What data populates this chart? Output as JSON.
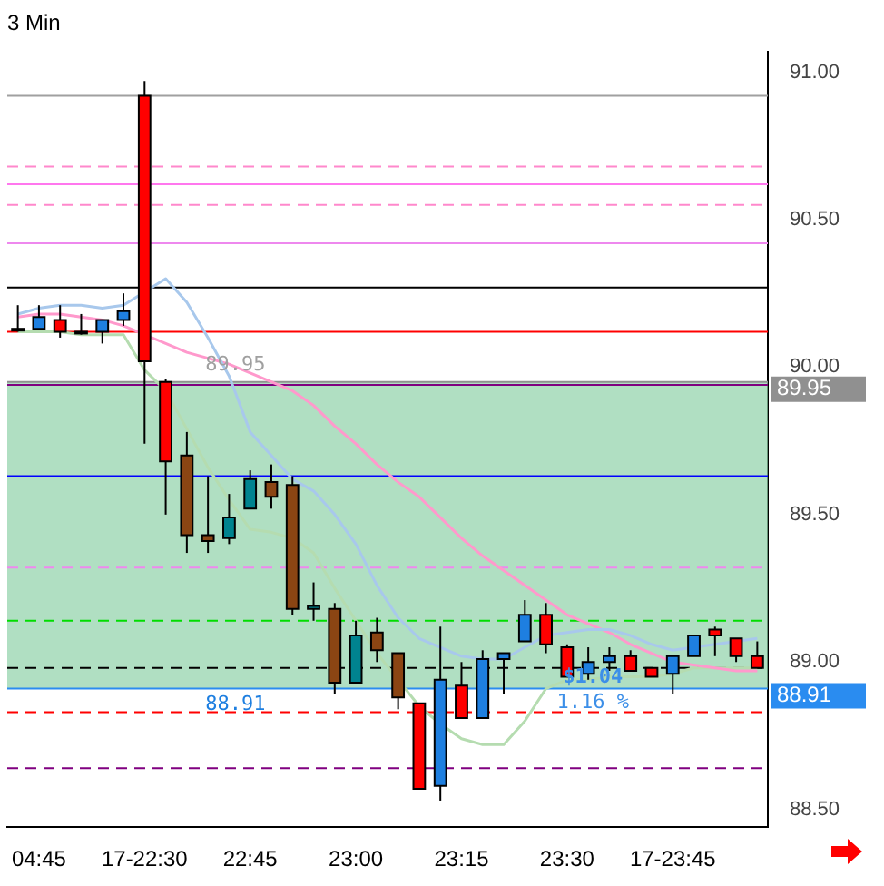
{
  "chart_data": {
    "type": "candlestick",
    "title": "3 Min",
    "categories": [
      null,
      "04:45",
      null,
      null,
      null,
      null,
      "17-22:30",
      null,
      null,
      null,
      null,
      "22:45",
      null,
      null,
      null,
      null,
      "23:00",
      null,
      null,
      null,
      null,
      "23:15",
      null,
      null,
      null,
      null,
      "23:30",
      null,
      null,
      null,
      null,
      "17-23:45",
      null,
      null,
      null,
      null
    ],
    "ohlc": [
      [
        90.13,
        90.21,
        90.12,
        90.13
      ],
      [
        90.13,
        90.21,
        90.13,
        90.17
      ],
      [
        90.16,
        90.21,
        90.1,
        90.12
      ],
      [
        90.12,
        90.18,
        90.11,
        90.12
      ],
      [
        90.12,
        90.16,
        90.08,
        90.16
      ],
      [
        90.16,
        90.25,
        90.14,
        90.19
      ],
      [
        90.92,
        90.97,
        89.74,
        90.02
      ],
      [
        89.95,
        89.96,
        89.5,
        89.68
      ],
      [
        89.7,
        89.78,
        89.37,
        89.43
      ],
      [
        89.43,
        89.63,
        89.37,
        89.41
      ],
      [
        89.42,
        89.57,
        89.4,
        89.49
      ],
      [
        89.52,
        89.65,
        89.52,
        89.62
      ],
      [
        89.61,
        89.67,
        89.52,
        89.56
      ],
      [
        89.6,
        89.63,
        89.16,
        89.18
      ],
      [
        89.18,
        89.27,
        89.14,
        89.19
      ],
      [
        89.18,
        89.2,
        88.89,
        88.93
      ],
      [
        88.93,
        89.14,
        88.93,
        89.09
      ],
      [
        89.1,
        89.15,
        89.0,
        89.04
      ],
      [
        89.03,
        89.03,
        88.84,
        88.88
      ],
      [
        88.86,
        88.86,
        88.57,
        88.57
      ],
      [
        88.58,
        89.12,
        88.53,
        88.94
      ],
      [
        88.92,
        89.0,
        88.81,
        88.81
      ],
      [
        88.81,
        89.04,
        88.81,
        89.01
      ],
      [
        89.01,
        89.03,
        88.89,
        89.03
      ],
      [
        89.07,
        89.21,
        89.07,
        89.16
      ],
      [
        89.16,
        89.2,
        89.03,
        89.06
      ],
      [
        89.05,
        89.06,
        88.95,
        88.95
      ],
      [
        88.96,
        89.05,
        88.94,
        89.0
      ],
      [
        89.0,
        89.05,
        88.97,
        89.02
      ],
      [
        89.02,
        89.04,
        88.97,
        88.97
      ],
      [
        88.98,
        88.98,
        88.95,
        88.95
      ],
      [
        88.96,
        89.02,
        88.89,
        89.02
      ],
      [
        89.02,
        89.09,
        89.02,
        89.09
      ],
      [
        89.11,
        89.12,
        89.02,
        89.09
      ],
      [
        89.08,
        89.08,
        89.0,
        89.02
      ],
      [
        89.02,
        89.07,
        88.98,
        88.98
      ]
    ],
    "colors": [
      "#000000",
      "#1e7fe0",
      "#ff0000",
      "#000000",
      "#1e7fe0",
      "#1e7fe0",
      "#ff0000",
      "#ff0000",
      "#8b4513",
      "#8b4513",
      "#00838f",
      "#00838f",
      "#8b4513",
      "#8b4513",
      "#00838f",
      "#8b4513",
      "#00838f",
      "#8b4513",
      "#8b4513",
      "#ff0000",
      "#1e7fe0",
      "#ff0000",
      "#1e7fe0",
      "#1e7fe0",
      "#1e7fe0",
      "#ff0000",
      "#ff0000",
      "#1e7fe0",
      "#1e7fe0",
      "#ff0000",
      "#ff0000",
      "#1e7fe0",
      "#1e7fe0",
      "#ff0000",
      "#ff0000",
      "#ff0000"
    ],
    "series": [
      {
        "type": "line",
        "color": "#a8c8ec",
        "values": [
          90.18,
          90.2,
          90.21,
          90.21,
          90.2,
          90.21,
          null,
          90.3,
          90.22,
          90.1,
          89.97,
          89.78,
          89.7,
          89.62,
          89.58,
          89.5,
          89.4,
          89.26,
          89.15,
          89.08,
          89.05,
          89.02,
          89.01,
          89.01,
          89.05,
          89.09,
          89.1,
          89.11,
          89.11,
          89.09,
          89.06,
          89.04,
          89.05,
          89.06,
          89.07,
          89.08
        ]
      },
      {
        "type": "line",
        "color": "#ff99cc",
        "values": [
          90.17,
          90.18,
          90.18,
          90.17,
          90.16,
          90.14,
          90.11,
          90.08,
          90.05,
          90.03,
          90.01,
          89.98,
          89.95,
          89.92,
          89.87,
          89.8,
          89.74,
          89.67,
          89.61,
          89.56,
          89.49,
          89.42,
          89.36,
          89.31,
          89.26,
          89.21,
          89.16,
          89.13,
          89.1,
          89.06,
          89.03,
          89.0,
          88.99,
          88.98,
          88.97,
          88.97
        ]
      },
      {
        "type": "line",
        "color": "#b5dcb0",
        "values": [
          90.12,
          90.12,
          90.12,
          90.11,
          90.11,
          90.11,
          89.99,
          89.92,
          89.79,
          89.66,
          89.55,
          89.45,
          89.44,
          89.42,
          89.37,
          89.25,
          89.14,
          89.03,
          88.94,
          88.85,
          88.79,
          88.74,
          88.72,
          88.72,
          88.8,
          88.91,
          88.94,
          88.94,
          88.95,
          88.95,
          88.95,
          88.96,
          88.98,
          88.98,
          88.98,
          88.98
        ]
      }
    ],
    "ylim": [
      88.44,
      91.07
    ],
    "yticks": [
      {
        "value": 88.5,
        "label": "88.50"
      },
      {
        "value": 89,
        "label": "89.00"
      },
      {
        "value": 89.5,
        "label": "89.50"
      },
      {
        "value": 90,
        "label": "90.00"
      },
      {
        "value": 90.5,
        "label": "90.50"
      },
      {
        "value": 91,
        "label": "91.00"
      }
    ],
    "ref_lines": [
      {
        "axis": "y",
        "value": 90.92,
        "color": "#a0a0a0",
        "line_style": "solid"
      },
      {
        "axis": "y",
        "value": 90.68,
        "color": "#ff88cc",
        "line_style": "dashed"
      },
      {
        "axis": "y",
        "value": 90.62,
        "color": "#ff77ee",
        "line_style": "solid"
      },
      {
        "axis": "y",
        "value": 90.55,
        "color": "#ff88cc",
        "line_style": "dashed"
      },
      {
        "axis": "y",
        "value": 90.42,
        "color": "#ee88ee",
        "line_style": "solid"
      },
      {
        "axis": "y",
        "value": 90.27,
        "color": "#000000",
        "line_style": "solid"
      },
      {
        "axis": "y",
        "value": 90.12,
        "color": "#ff0000",
        "line_style": "solid"
      },
      {
        "axis": "y",
        "value": 89.94,
        "color": "#800080",
        "line_style": "solid"
      },
      {
        "axis": "y",
        "value": 89.63,
        "color": "#0000ff",
        "line_style": "solid"
      },
      {
        "axis": "y",
        "value": 89.32,
        "color": "#ee88ee",
        "line_style": "dashed"
      },
      {
        "axis": "y",
        "value": 89.14,
        "color": "#00dd00",
        "line_style": "dashed"
      },
      {
        "axis": "y",
        "value": 88.98,
        "color": "#000000",
        "line_style": "dashed"
      },
      {
        "axis": "y",
        "value": 88.83,
        "color": "#ff0000",
        "line_style": "dashed"
      },
      {
        "axis": "y",
        "value": 88.64,
        "color": "#800080",
        "line_style": "dashed"
      },
      {
        "axis": "y",
        "value": 89.95,
        "color": "#909090",
        "line_style": "solid",
        "label": "89.95"
      },
      {
        "axis": "y",
        "value": 88.91,
        "color": "#2a8cf0",
        "line_style": "solid",
        "label": "88.91"
      }
    ],
    "bands": [
      {
        "axis": "y",
        "from": 88.91,
        "to": 89.95,
        "color": "#8fd1a8"
      }
    ],
    "annotations": [
      "89.95",
      "88.91",
      "$1.04",
      "1.16 %"
    ],
    "grid": false,
    "legend": false,
    "marker": "none",
    "line_style": "solid"
  }
}
